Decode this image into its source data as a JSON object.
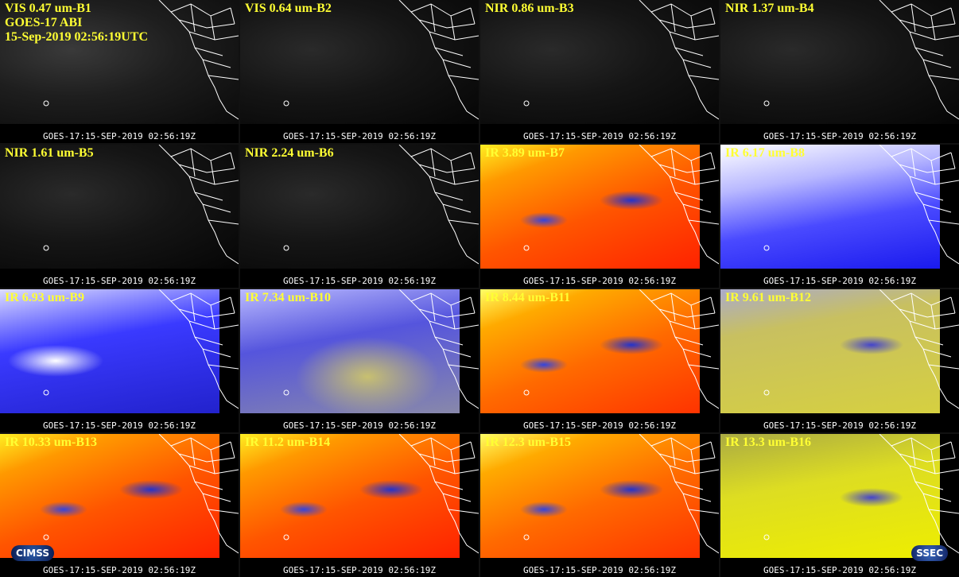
{
  "header": {
    "lines": [
      "GOES-17 ABI",
      "15-Sep-2019 02:56:19UTC"
    ]
  },
  "panels": [
    {
      "label": "VIS 0.47 um-B1",
      "timestamp": "GOES-17:15-SEP-2019 02:56:19Z"
    },
    {
      "label": "VIS 0.64 um-B2",
      "timestamp": "GOES-17:15-SEP-2019 02:56:19Z"
    },
    {
      "label": "NIR 0.86 um-B3",
      "timestamp": "GOES-17:15-SEP-2019 02:56:19Z"
    },
    {
      "label": "NIR 1.37 um-B4",
      "timestamp": "GOES-17:15-SEP-2019 02:56:19Z"
    },
    {
      "label": "NIR 1.61 um-B5",
      "timestamp": "GOES-17:15-SEP-2019 02:56:19Z"
    },
    {
      "label": "NIR 2.24 um-B6",
      "timestamp": "GOES-17:15-SEP-2019 02:56:19Z"
    },
    {
      "label": "IR 3.89 um-B7",
      "timestamp": "GOES-17:15-SEP-2019 02:56:19Z"
    },
    {
      "label": "IR 6.17 um-B8",
      "timestamp": "GOES-17:15-SEP-2019 02:56:19Z"
    },
    {
      "label": "IR 6.93 um-B9",
      "timestamp": "GOES-17:15-SEP-2019 02:56:19Z"
    },
    {
      "label": "IR 7.34 um-B10",
      "timestamp": "GOES-17:15-SEP-2019 02:56:19Z"
    },
    {
      "label": "IR 8.44 um-B11",
      "timestamp": "GOES-17:15-SEP-2019 02:56:19Z"
    },
    {
      "label": "IR 9.61 um-B12",
      "timestamp": "GOES-17:15-SEP-2019 02:56:19Z"
    },
    {
      "label": "IR 10.33 um-B13",
      "timestamp": "GOES-17:15-SEP-2019 02:56:19Z"
    },
    {
      "label": "IR 11.2 um-B14",
      "timestamp": "GOES-17:15-SEP-2019 02:56:19Z"
    },
    {
      "label": "IR 12.3 um-B15",
      "timestamp": "GOES-17:15-SEP-2019 02:56:19Z"
    },
    {
      "label": "IR 13.3 um-B16",
      "timestamp": "GOES-17:15-SEP-2019 02:56:19Z"
    }
  ],
  "logos": {
    "left": "CIMSS",
    "right": "SSEC"
  }
}
